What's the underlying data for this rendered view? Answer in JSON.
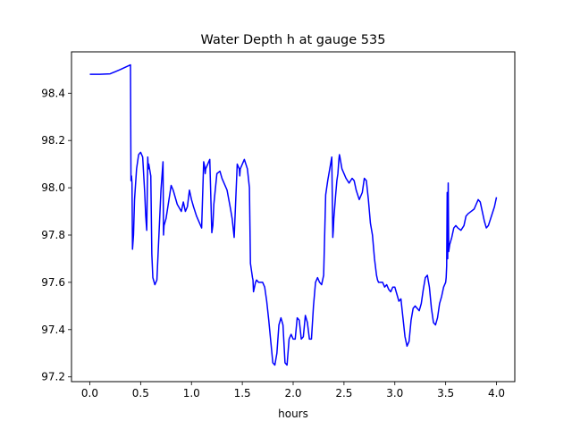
{
  "chart_data": {
    "type": "line",
    "title": "Water Depth h at gauge 535",
    "xlabel": "hours",
    "ylabel": "",
    "xlim": [
      -0.18,
      4.18
    ],
    "ylim": [
      97.18,
      98.575
    ],
    "xticks": [
      0.0,
      0.5,
      1.0,
      1.5,
      2.0,
      2.5,
      3.0,
      3.5,
      4.0
    ],
    "xtick_labels": [
      "0.0",
      "0.5",
      "1.0",
      "1.5",
      "2.0",
      "2.5",
      "3.0",
      "3.5",
      "4.0"
    ],
    "yticks": [
      97.2,
      97.4,
      97.6,
      97.8,
      98.0,
      98.2,
      98.4
    ],
    "ytick_labels": [
      "97.2",
      "97.4",
      "97.6",
      "97.8",
      "98.0",
      "98.2",
      "98.4"
    ],
    "grid": false,
    "legend": "none",
    "series": [
      {
        "color": "#0000ff",
        "x": [
          0.0,
          0.1,
          0.2,
          0.3,
          0.35,
          0.4,
          0.405,
          0.41,
          0.415,
          0.42,
          0.43,
          0.44,
          0.46,
          0.48,
          0.5,
          0.52,
          0.54,
          0.55,
          0.56,
          0.57,
          0.575,
          0.58,
          0.6,
          0.61,
          0.62,
          0.64,
          0.66,
          0.68,
          0.7,
          0.72,
          0.725,
          0.73,
          0.75,
          0.8,
          0.82,
          0.86,
          0.9,
          0.92,
          0.94,
          0.96,
          0.98,
          1.0,
          1.02,
          1.05,
          1.1,
          1.12,
          1.13,
          1.135,
          1.14,
          1.16,
          1.18,
          1.2,
          1.21,
          1.22,
          1.25,
          1.28,
          1.3,
          1.33,
          1.35,
          1.38,
          1.4,
          1.42,
          1.45,
          1.47,
          1.475,
          1.48,
          1.5,
          1.52,
          1.55,
          1.57,
          1.58,
          1.59,
          1.6,
          1.605,
          1.61,
          1.63,
          1.64,
          1.66,
          1.68,
          1.7,
          1.72,
          1.74,
          1.76,
          1.78,
          1.8,
          1.82,
          1.84,
          1.86,
          1.88,
          1.9,
          1.92,
          1.94,
          1.96,
          1.98,
          2.0,
          2.02,
          2.04,
          2.06,
          2.08,
          2.1,
          2.12,
          2.14,
          2.16,
          2.18,
          2.2,
          2.22,
          2.24,
          2.26,
          2.28,
          2.3,
          2.32,
          2.34,
          2.36,
          2.38,
          2.39,
          2.395,
          2.4,
          2.42,
          2.43,
          2.44,
          2.445,
          2.45,
          2.455,
          2.46,
          2.48,
          2.5,
          2.52,
          2.55,
          2.58,
          2.6,
          2.62,
          2.65,
          2.68,
          2.7,
          2.72,
          2.74,
          2.76,
          2.78,
          2.8,
          2.82,
          2.83,
          2.84,
          2.86,
          2.88,
          2.9,
          2.92,
          2.94,
          2.96,
          2.98,
          3.0,
          3.02,
          3.04,
          3.06,
          3.08,
          3.1,
          3.12,
          3.14,
          3.16,
          3.18,
          3.2,
          3.22,
          3.24,
          3.26,
          3.28,
          3.3,
          3.32,
          3.34,
          3.36,
          3.38,
          3.4,
          3.42,
          3.44,
          3.46,
          3.48,
          3.5,
          3.505,
          3.51,
          3.515,
          3.52,
          3.525,
          3.53,
          3.54,
          3.56,
          3.58,
          3.6,
          3.62,
          3.65,
          3.68,
          3.7,
          3.72,
          3.75,
          3.78,
          3.8,
          3.82,
          3.84,
          3.86,
          3.88,
          3.9,
          3.92,
          3.95,
          3.98,
          4.0
        ],
        "y": [
          98.48,
          98.48,
          98.482,
          98.5,
          98.51,
          98.52,
          98.03,
          98.05,
          98.02,
          97.74,
          97.8,
          97.95,
          98.08,
          98.14,
          98.15,
          98.13,
          97.98,
          97.88,
          97.82,
          98.13,
          98.08,
          98.1,
          98.05,
          97.72,
          97.62,
          97.59,
          97.61,
          97.8,
          97.99,
          98.11,
          97.8,
          97.84,
          97.87,
          98.01,
          97.99,
          97.93,
          97.9,
          97.94,
          97.9,
          97.92,
          97.99,
          97.95,
          97.92,
          97.88,
          97.83,
          98.11,
          98.09,
          98.06,
          98.08,
          98.1,
          98.12,
          97.81,
          97.84,
          97.93,
          98.06,
          98.07,
          98.04,
          98.01,
          97.99,
          97.92,
          97.87,
          97.79,
          98.1,
          98.08,
          98.05,
          98.08,
          98.1,
          98.12,
          98.08,
          98.0,
          97.68,
          97.65,
          97.62,
          97.61,
          97.56,
          97.6,
          97.61,
          97.6,
          97.6,
          97.6,
          97.58,
          97.52,
          97.44,
          97.35,
          97.26,
          97.25,
          97.3,
          97.42,
          97.45,
          97.42,
          97.26,
          97.25,
          97.36,
          97.38,
          97.36,
          97.36,
          97.45,
          97.44,
          97.36,
          97.37,
          97.46,
          97.43,
          97.36,
          97.36,
          97.5,
          97.6,
          97.62,
          97.6,
          97.59,
          97.63,
          97.97,
          98.03,
          98.08,
          98.13,
          97.79,
          97.82,
          97.87,
          97.98,
          98.03,
          98.06,
          98.09,
          98.12,
          98.14,
          98.13,
          98.08,
          98.06,
          98.04,
          98.02,
          98.04,
          98.03,
          97.99,
          97.95,
          97.98,
          98.04,
          98.03,
          97.95,
          97.85,
          97.8,
          97.7,
          97.63,
          97.61,
          97.6,
          97.6,
          97.6,
          97.58,
          97.59,
          97.57,
          97.56,
          97.58,
          97.58,
          97.55,
          97.52,
          97.53,
          97.45,
          97.37,
          97.33,
          97.35,
          97.44,
          97.49,
          97.5,
          97.49,
          97.48,
          97.51,
          97.57,
          97.62,
          97.63,
          97.58,
          97.49,
          97.43,
          97.42,
          97.45,
          97.51,
          97.54,
          97.58,
          97.6,
          97.62,
          97.67,
          97.98,
          97.7,
          98.02,
          97.73,
          97.76,
          97.79,
          97.83,
          97.84,
          97.83,
          97.82,
          97.84,
          97.88,
          97.89,
          97.9,
          97.91,
          97.93,
          97.95,
          97.94,
          97.9,
          97.86,
          97.83,
          97.84,
          97.88,
          97.92,
          97.96
        ]
      }
    ]
  }
}
